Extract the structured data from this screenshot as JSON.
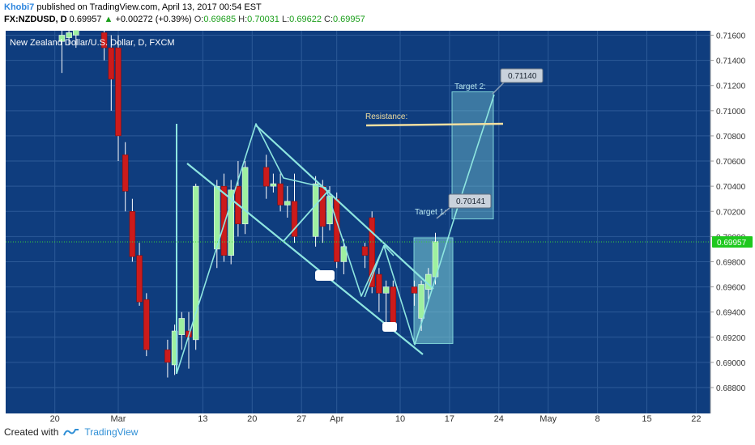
{
  "header": {
    "author": "Khobi7",
    "published_text": "published on TradingView.com, April 13, 2017 00:54 EST",
    "symbol": "FX:NZDUSD, D",
    "price": "0.69957",
    "change_arrow": "▲",
    "change": "+0.00272 (+0.39%)",
    "o_label": "O:",
    "o_value": "0.69685",
    "h_label": "H:",
    "h_value": "0.70031",
    "l_label": "L:",
    "l_value": "0.69622",
    "c_label": "C:",
    "c_value": "0.69957"
  },
  "footer": {
    "created_with": "Created with",
    "brand": "TradingView",
    "logo_icon": "tradingview-logo-icon"
  },
  "chart_data": {
    "type": "candlestick",
    "title": "New Zealand Dollar/U.S. Dollar, D, FXCM",
    "x_tick_labels": [
      {
        "label": "20",
        "day": -9
      },
      {
        "label": "Mar",
        "day": 0
      },
      {
        "label": "13",
        "day": 12
      },
      {
        "label": "20",
        "day": 19
      },
      {
        "label": "27",
        "day": 26
      },
      {
        "label": "Apr",
        "day": 31
      },
      {
        "label": "10",
        "day": 40
      },
      {
        "label": "17",
        "day": 47
      },
      {
        "label": "24",
        "day": 54
      },
      {
        "label": "May",
        "day": 61
      },
      {
        "label": "8",
        "day": 68
      },
      {
        "label": "15",
        "day": 75
      },
      {
        "label": "22",
        "day": 82
      }
    ],
    "y_tick_labels": [
      "0.71600",
      "0.71400",
      "0.71200",
      "0.71000",
      "0.70800",
      "0.70600",
      "0.70400",
      "0.70200",
      "0.70000",
      "0.69800",
      "0.69600",
      "0.69400",
      "0.69200",
      "0.69000",
      "0.68800"
    ],
    "ylim": [
      0.6875,
      0.7168
    ],
    "candles": [
      {
        "day": -8,
        "o": 0.7155,
        "h": 0.7164,
        "l": 0.713,
        "c": 0.716
      },
      {
        "day": -7,
        "o": 0.7158,
        "h": 0.7168,
        "l": 0.7152,
        "c": 0.7162
      },
      {
        "day": -6,
        "o": 0.716,
        "h": 0.7168,
        "l": 0.715,
        "c": 0.7164
      },
      {
        "day": -2,
        "o": 0.7162,
        "h": 0.7168,
        "l": 0.714,
        "c": 0.715
      },
      {
        "day": -1,
        "o": 0.715,
        "h": 0.716,
        "l": 0.71,
        "c": 0.7125
      },
      {
        "day": 0,
        "o": 0.715,
        "h": 0.716,
        "l": 0.706,
        "c": 0.708
      },
      {
        "day": 1,
        "o": 0.7065,
        "h": 0.7075,
        "l": 0.702,
        "c": 0.7036
      },
      {
        "day": 2,
        "o": 0.702,
        "h": 0.703,
        "l": 0.698,
        "c": 0.6984
      },
      {
        "day": 3,
        "o": 0.6985,
        "h": 0.6995,
        "l": 0.6945,
        "c": 0.6948
      },
      {
        "day": 4,
        "o": 0.695,
        "h": 0.6955,
        "l": 0.6905,
        "c": 0.691
      },
      {
        "day": 7,
        "o": 0.691,
        "h": 0.6918,
        "l": 0.6888,
        "c": 0.69
      },
      {
        "day": 8,
        "o": 0.6898,
        "h": 0.693,
        "l": 0.689,
        "c": 0.6925
      },
      {
        "day": 9,
        "o": 0.6922,
        "h": 0.694,
        "l": 0.691,
        "c": 0.6935
      },
      {
        "day": 10,
        "o": 0.6925,
        "h": 0.694,
        "l": 0.6895,
        "c": 0.692
      },
      {
        "day": 11,
        "o": 0.6918,
        "h": 0.7042,
        "l": 0.691,
        "c": 0.704
      },
      {
        "day": 14,
        "o": 0.699,
        "h": 0.7045,
        "l": 0.6975,
        "c": 0.704
      },
      {
        "day": 15,
        "o": 0.704,
        "h": 0.705,
        "l": 0.698,
        "c": 0.6985
      },
      {
        "day": 16,
        "o": 0.6985,
        "h": 0.7045,
        "l": 0.6978,
        "c": 0.7037
      },
      {
        "day": 17,
        "o": 0.704,
        "h": 0.706,
        "l": 0.7,
        "c": 0.701
      },
      {
        "day": 18,
        "o": 0.701,
        "h": 0.706,
        "l": 0.7002,
        "c": 0.7055
      },
      {
        "day": 21,
        "o": 0.7055,
        "h": 0.7065,
        "l": 0.703,
        "c": 0.704
      },
      {
        "day": 22,
        "o": 0.704,
        "h": 0.705,
        "l": 0.7035,
        "c": 0.7042
      },
      {
        "day": 23,
        "o": 0.7042,
        "h": 0.705,
        "l": 0.702,
        "c": 0.7025
      },
      {
        "day": 24,
        "o": 0.7025,
        "h": 0.704,
        "l": 0.7015,
        "c": 0.7028
      },
      {
        "day": 25,
        "o": 0.7028,
        "h": 0.705,
        "l": 0.6995,
        "c": 0.7
      },
      {
        "day": 28,
        "o": 0.7,
        "h": 0.7048,
        "l": 0.6992,
        "c": 0.7042
      },
      {
        "day": 29,
        "o": 0.704,
        "h": 0.7045,
        "l": 0.6995,
        "c": 0.7008
      },
      {
        "day": 30,
        "o": 0.701,
        "h": 0.704,
        "l": 0.7005,
        "c": 0.7032
      },
      {
        "day": 31,
        "o": 0.703,
        "h": 0.7035,
        "l": 0.6975,
        "c": 0.698
      },
      {
        "day": 32,
        "o": 0.698,
        "h": 0.6998,
        "l": 0.697,
        "c": 0.6992
      },
      {
        "day": 35,
        "o": 0.6992,
        "h": 0.6995,
        "l": 0.6975,
        "c": 0.6985
      },
      {
        "day": 36,
        "o": 0.7015,
        "h": 0.702,
        "l": 0.6955,
        "c": 0.696
      },
      {
        "day": 37,
        "o": 0.697,
        "h": 0.6975,
        "l": 0.694,
        "c": 0.6955
      },
      {
        "day": 38,
        "o": 0.6955,
        "h": 0.6965,
        "l": 0.693,
        "c": 0.696
      },
      {
        "day": 39,
        "o": 0.696,
        "h": 0.6965,
        "l": 0.6925,
        "c": 0.693
      },
      {
        "day": 42,
        "o": 0.696,
        "h": 0.6965,
        "l": 0.6945,
        "c": 0.6955
      },
      {
        "day": 43,
        "o": 0.6935,
        "h": 0.6965,
        "l": 0.6925,
        "c": 0.6962
      },
      {
        "day": 44,
        "o": 0.6958,
        "h": 0.6975,
        "l": 0.695,
        "c": 0.697
      },
      {
        "day": 45,
        "o": 0.6968,
        "h": 0.7003,
        "l": 0.6962,
        "c": 0.6996
      }
    ],
    "current_price": "0.69957",
    "annotations": {
      "resistance_label": "Resistance:",
      "resistance_level": 0.709,
      "target1_label": "Target 1:",
      "target1_value": "0.70141",
      "target2_label": "Target 2:",
      "target2_value": "0.71140"
    },
    "colors": {
      "background": "#0f3d7e",
      "grid": "#2c5a98",
      "bull": "#9ef0a0",
      "bear": "#cc1b1b",
      "pattern_lines": "#8ee6e0",
      "target_box": "#7fd3d9",
      "resistance": "#f2dfa0",
      "price_tag": "#1ec81e"
    }
  }
}
